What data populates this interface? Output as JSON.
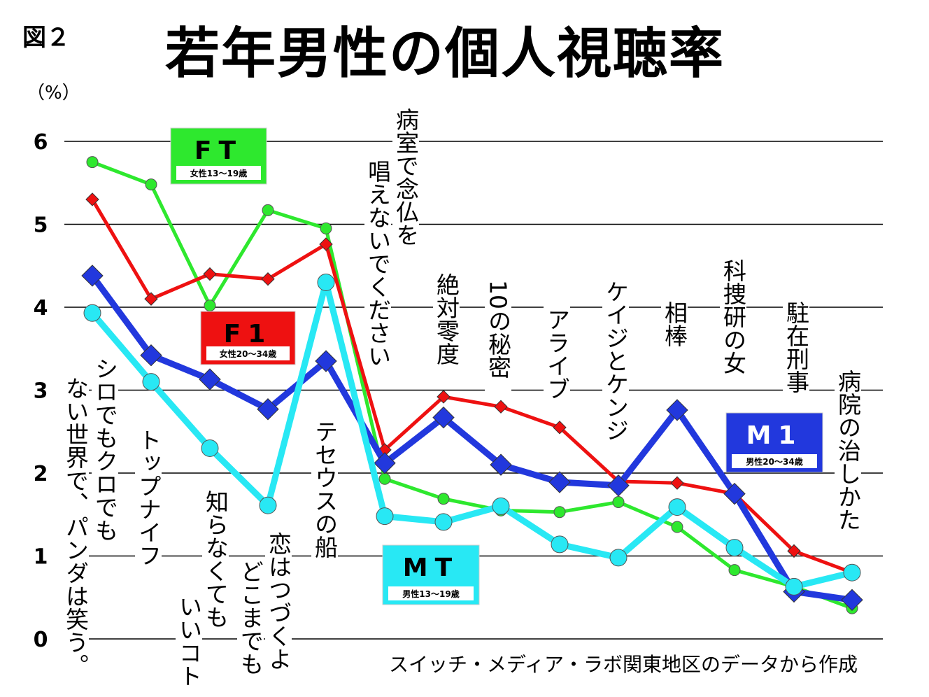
{
  "figure_label": "図２",
  "chart_data": {
    "type": "line",
    "title": "若年男性の個人視聴率",
    "ylabel": "（%）",
    "ylim": [
      0,
      6
    ],
    "yticks": [
      "0",
      "1",
      "2",
      "3",
      "4",
      "5",
      "6"
    ],
    "grid": true,
    "categories": [
      "シロでもクロでもない世界で、パンダは笑う。",
      "トップナイフ",
      "知らなくてもいいコト",
      "恋はつづくよどこまでも",
      "テセウスの船",
      "病室で念仏を唱えないでください",
      "絶対零度",
      "10の秘密",
      "アライブ",
      "ケイジとケンジ",
      "相棒",
      "科捜研の女",
      "駐在刑事",
      "病院の治しかた"
    ],
    "category_label_lines": [
      [
        "シロでもクロでも",
        "ない世界で、パンダは笑う。"
      ],
      [
        "トップナイフ"
      ],
      [
        "知らなくても",
        "いいコト"
      ],
      [
        "恋はつづくよ",
        "どこまでも"
      ],
      [
        "テセウスの船"
      ],
      [
        "病室で念仏を",
        "唱えないでください"
      ],
      [
        "絶対零度"
      ],
      [
        "10の秘密"
      ],
      [
        "アライブ"
      ],
      [
        "ケイジとケンジ"
      ],
      [
        "相棒"
      ],
      [
        "科捜研の女"
      ],
      [
        "駐在刑事"
      ],
      [
        "病院の治しかた"
      ]
    ],
    "series": [
      {
        "name": "FT",
        "subtitle": "女性13～19歳",
        "color": "#2ee82e",
        "marker": "circle-small",
        "values": [
          5.75,
          5.48,
          4.02,
          5.17,
          4.95,
          1.93,
          1.69,
          1.55,
          1.53,
          1.65,
          1.35,
          0.83,
          0.63,
          0.37
        ]
      },
      {
        "name": "F1",
        "subtitle": "女性20～34歳",
        "color": "#ee1111",
        "marker": "diamond-small",
        "values": [
          5.3,
          4.1,
          4.4,
          4.34,
          4.76,
          2.28,
          2.92,
          2.8,
          2.55,
          1.9,
          1.88,
          1.75,
          1.06,
          0.8
        ]
      },
      {
        "name": "M1",
        "subtitle": "男性20～34歳",
        "color": "#2238dd",
        "marker": "diamond-large",
        "values": [
          4.38,
          3.42,
          3.13,
          2.77,
          3.35,
          2.12,
          2.67,
          2.1,
          1.89,
          1.85,
          2.76,
          1.75,
          0.57,
          0.47
        ]
      },
      {
        "name": "MT",
        "subtitle": "男性13～19歳",
        "color": "#28e8f4",
        "marker": "circle-large",
        "values": [
          3.93,
          3.1,
          2.3,
          1.61,
          4.3,
          1.48,
          1.41,
          1.6,
          1.14,
          0.98,
          1.59,
          1.1,
          0.63,
          0.8
        ]
      }
    ],
    "source": "スイッチ・メディア・ラボ関東地区のデータから作成"
  }
}
